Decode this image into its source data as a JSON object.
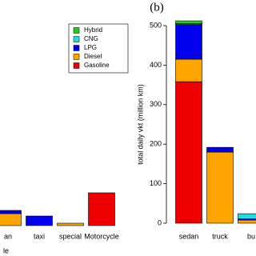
{
  "chart_data": [
    {
      "type": "stacked_bar",
      "xlabel": "le",
      "categories": [
        "an",
        "taxi",
        "special",
        "Motorcycle"
      ],
      "series": [
        {
          "name": "Gasoline",
          "color": "#ee0000",
          "values": [
            0,
            0,
            0,
            41
          ]
        },
        {
          "name": "Diesel",
          "color": "#ffa500",
          "values": [
            15,
            0,
            3,
            0
          ]
        },
        {
          "name": "LPG",
          "color": "#0000ee",
          "values": [
            4,
            12,
            0,
            0
          ]
        },
        {
          "name": "CNG",
          "color": "#22dddd",
          "values": [
            0,
            0,
            0,
            0
          ]
        },
        {
          "name": "Hybrid",
          "color": "#22cc22",
          "values": [
            0,
            0,
            0,
            0
          ]
        }
      ],
      "ylim": [
        0,
        250
      ],
      "legend": "top-right"
    },
    {
      "type": "stacked_bar",
      "title": "(b)",
      "ylabel": "total daily vkt (million km)",
      "categories": [
        "sedan",
        "truck",
        "bu"
      ],
      "series": [
        {
          "name": "Gasoline",
          "color": "#ee0000",
          "values": [
            358,
            0,
            0
          ]
        },
        {
          "name": "Diesel",
          "color": "#ffa500",
          "values": [
            57,
            180,
            8
          ]
        },
        {
          "name": "LPG",
          "color": "#0000ee",
          "values": [
            88,
            12,
            3
          ]
        },
        {
          "name": "CNG",
          "color": "#22dddd",
          "values": [
            2,
            0,
            13
          ]
        },
        {
          "name": "Hybrid",
          "color": "#22cc22",
          "values": [
            7,
            0,
            0
          ]
        }
      ],
      "ylim": [
        0,
        500
      ],
      "yticks": [
        0,
        100,
        200,
        300,
        400,
        500
      ]
    }
  ]
}
